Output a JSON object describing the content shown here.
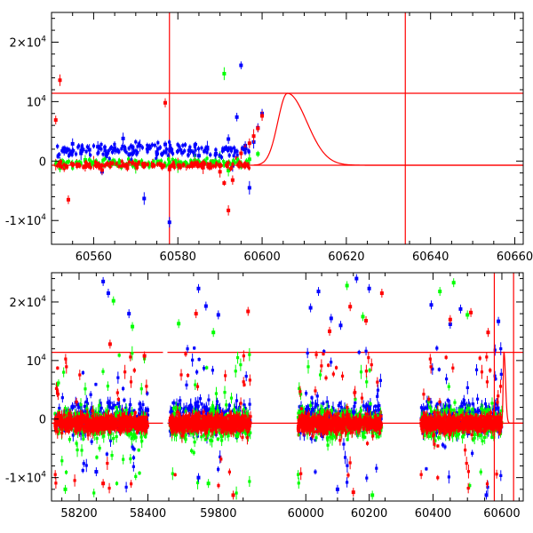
{
  "chart_data": [
    {
      "type": "scatter",
      "title": "",
      "xlabel": "",
      "ylabel": "",
      "xlim": [
        60550,
        60662
      ],
      "ylim": [
        -14000,
        25000
      ],
      "x_ticks": [
        "60560",
        "60580",
        "60600",
        "60620",
        "60640",
        "60660"
      ],
      "y_ticks": [
        {
          "mant": "2×10",
          "exp": "4",
          "value": 20000
        },
        {
          "mant": "10",
          "exp": "4",
          "value": 10000
        },
        {
          "mant": "0",
          "exp": "",
          "value": 0
        },
        {
          "mant": "-1×10",
          "exp": "4",
          "value": -10000
        }
      ],
      "reference_lines": {
        "horizontal": [
          11400,
          -700
        ],
        "vertical": [
          60578,
          60634
        ]
      },
      "model_curve": {
        "description": "peaked model light curve",
        "baseline": -700,
        "peak_x": 60606,
        "peak_y": 11400
      },
      "series": [
        {
          "color": "#0000ff",
          "points": [
            [
              60552,
              -300
            ],
            [
              60553,
              1600
            ],
            [
              60555,
              2900
            ],
            [
              60557,
              1300
            ],
            [
              60559,
              1900
            ],
            [
              60561,
              2400
            ],
            [
              60563,
              800
            ],
            [
              60565,
              2200
            ],
            [
              60567,
              3800
            ],
            [
              60569,
              1200
            ],
            [
              60571,
              2600
            ],
            [
              60573,
              2100
            ],
            [
              60575,
              1500
            ],
            [
              60577,
              2800
            ],
            [
              60578,
              -10300
            ],
            [
              60581,
              1400
            ],
            [
              60583,
              1700
            ],
            [
              60585,
              900
            ],
            [
              60587,
              2300
            ],
            [
              60589,
              1200
            ],
            [
              60591,
              2000
            ],
            [
              60592,
              3700
            ],
            [
              60593,
              -800
            ],
            [
              60594,
              7400
            ],
            [
              60595,
              16100
            ],
            [
              60596,
              2600
            ],
            [
              60597,
              -4500
            ],
            [
              60598,
              3200
            ],
            [
              60599,
              5600
            ],
            [
              60600,
              8000
            ],
            [
              60572,
              -6300
            ],
            [
              60562,
              -1800
            ],
            [
              60584,
              1000
            ]
          ]
        },
        {
          "color": "#00ff00",
          "points": [
            [
              60552,
              -1200
            ],
            [
              60555,
              -500
            ],
            [
              60558,
              200
            ],
            [
              60562,
              -800
            ],
            [
              60566,
              -300
            ],
            [
              60570,
              -1100
            ],
            [
              60574,
              -600
            ],
            [
              60578,
              -200
            ],
            [
              60580,
              -900
            ],
            [
              60584,
              100
            ],
            [
              60588,
              -400
            ],
            [
              60590,
              800
            ],
            [
              60591,
              14700
            ],
            [
              60592,
              -1600
            ],
            [
              60595,
              -900
            ],
            [
              60597,
              300
            ],
            [
              60599,
              1200
            ]
          ]
        },
        {
          "color": "#ff0000",
          "points": [
            [
              60551,
              -600
            ],
            [
              60551,
              6900
            ],
            [
              60552,
              13600
            ],
            [
              60553,
              -1200
            ],
            [
              60554,
              -6500
            ],
            [
              60556,
              -400
            ],
            [
              60558,
              -1000
            ],
            [
              60560,
              -300
            ],
            [
              60562,
              -1500
            ],
            [
              60564,
              -800
            ],
            [
              60566,
              -400
            ],
            [
              60568,
              -1200
            ],
            [
              60570,
              -600
            ],
            [
              60572,
              -900
            ],
            [
              60574,
              -300
            ],
            [
              60576,
              -700
            ],
            [
              60577,
              9800
            ],
            [
              60578,
              -1400
            ],
            [
              60580,
              -500
            ],
            [
              60582,
              -800
            ],
            [
              60584,
              -300
            ],
            [
              60586,
              -1100
            ],
            [
              60588,
              -600
            ],
            [
              60590,
              -1800
            ],
            [
              60591,
              -3700
            ],
            [
              60592,
              -8300
            ],
            [
              60593,
              -3200
            ],
            [
              60594,
              500
            ],
            [
              60595,
              1300
            ],
            [
              60596,
              2200
            ],
            [
              60597,
              3000
            ],
            [
              60598,
              4200
            ],
            [
              60599,
              5500
            ],
            [
              60600,
              7600
            ]
          ]
        }
      ]
    },
    {
      "type": "scatter",
      "title": "",
      "xlabel": "",
      "ylabel": "",
      "segments_xlim": [
        [
          58120,
          58440
        ],
        [
          59700,
          59890
        ],
        [
          59960,
          60260
        ],
        [
          60355,
          60662
        ]
      ],
      "ylim": [
        -14000,
        25000
      ],
      "x_ticks": [
        "58200",
        "58400",
        "59800",
        "60000",
        "60200",
        "60400",
        "60600"
      ],
      "y_ticks": [
        {
          "mant": "2×10",
          "exp": "4",
          "value": 20000
        },
        {
          "mant": "10",
          "exp": "4",
          "value": 10000
        },
        {
          "mant": "0",
          "exp": "",
          "value": 0
        },
        {
          "mant": "-1×10",
          "exp": "4",
          "value": -10000
        }
      ],
      "reference_lines": {
        "horizontal": [
          11400,
          -700
        ],
        "vertical": [
          60578,
          60634
        ]
      },
      "seasons": [
        {
          "x_range": [
            58130,
            58400
          ],
          "core": [
            -3000,
            2500
          ]
        },
        {
          "x_range": [
            59702,
            59865
          ],
          "core": [
            -4000,
            3000
          ]
        },
        {
          "x_range": [
            59975,
            60240
          ],
          "core": [
            -4000,
            3000
          ]
        },
        {
          "x_range": [
            60365,
            60600
          ],
          "core": [
            -3500,
            2500
          ]
        }
      ],
      "outliers": [
        {
          "color": "#0000ff",
          "points": [
            [
              58270,
              23500
            ],
            [
              58285,
              21500
            ],
            [
              58345,
              18000
            ],
            [
              59760,
              22300
            ],
            [
              59775,
              19300
            ],
            [
              59800,
              17800
            ],
            [
              59760,
              -10000
            ],
            [
              60015,
              19000
            ],
            [
              60040,
              21800
            ],
            [
              60080,
              17200
            ],
            [
              60110,
              16000
            ],
            [
              60160,
              24000
            ],
            [
              60200,
              22300
            ],
            [
              60395,
              19500
            ],
            [
              60450,
              16200
            ],
            [
              60480,
              18800
            ],
            [
              60590,
              16700
            ],
            [
              58250,
              -9000
            ],
            [
              60100,
              -12000
            ],
            [
              60555,
              -13000
            ]
          ]
        },
        {
          "color": "#00ff00",
          "points": [
            [
              58300,
              20200
            ],
            [
              58355,
              15800
            ],
            [
              59720,
              16300
            ],
            [
              59790,
              14800
            ],
            [
              60130,
              22800
            ],
            [
              60180,
              17500
            ],
            [
              60420,
              21800
            ],
            [
              60460,
              23300
            ],
            [
              60500,
              17800
            ],
            [
              58160,
              -12000
            ],
            [
              59780,
              -11000
            ],
            [
              60210,
              -13000
            ]
          ]
        },
        {
          "color": "#ff0000",
          "points": [
            [
              58290,
              12800
            ],
            [
              58390,
              10800
            ],
            [
              59755,
              18000
            ],
            [
              59860,
              18400
            ],
            [
              60075,
              15000
            ],
            [
              60140,
              19200
            ],
            [
              60190,
              16800
            ],
            [
              60240,
              21500
            ],
            [
              60450,
              17000
            ],
            [
              60510,
              18200
            ],
            [
              60560,
              14800
            ],
            [
              58270,
              -11000
            ],
            [
              59830,
              -13000
            ],
            [
              60150,
              -12500
            ]
          ]
        }
      ]
    }
  ]
}
